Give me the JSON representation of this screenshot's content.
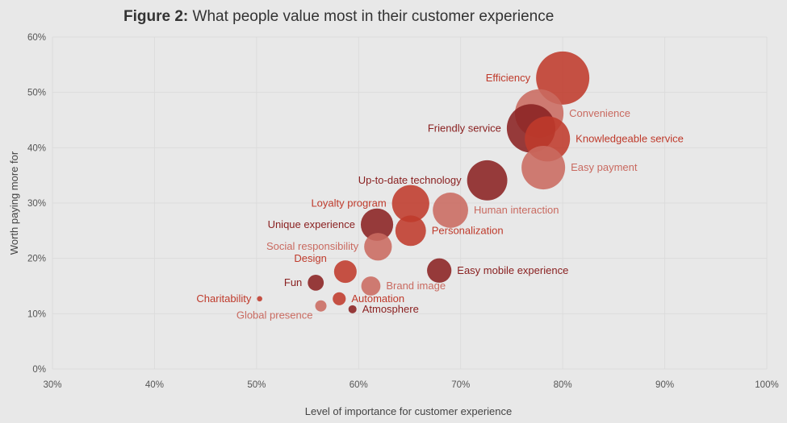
{
  "chart_data": {
    "type": "scatter",
    "subtype": "bubble",
    "title_prefix": "Figure 2:",
    "title": "What people value most in their customer experience",
    "xlabel": "Level of importance for customer experience",
    "ylabel": "Worth paying more for",
    "xlim": [
      30,
      100
    ],
    "ylim": [
      0,
      60
    ],
    "x_ticks": [
      "30%",
      "40%",
      "50%",
      "60%",
      "70%",
      "80%",
      "90%",
      "100%"
    ],
    "y_ticks": [
      "0%",
      "10%",
      "20%",
      "30%",
      "40%",
      "50%",
      "60%"
    ],
    "grid": true,
    "colors": {
      "red": "#bf3a2b",
      "dark": "#8a2121",
      "light": "#c96a60"
    },
    "points": [
      {
        "label": "Efficiency",
        "x": 80.0,
        "y": 52.6,
        "size": 100,
        "color": "red",
        "label_side": "left"
      },
      {
        "label": "Convenience",
        "x": 77.7,
        "y": 46.2,
        "size": 83,
        "color": "light",
        "label_side": "right"
      },
      {
        "label": "Friendly service",
        "x": 76.9,
        "y": 43.5,
        "size": 83,
        "color": "dark",
        "label_side": "left"
      },
      {
        "label": "Knowledgeable service",
        "x": 78.5,
        "y": 41.6,
        "size": 72,
        "color": "red",
        "label_side": "right"
      },
      {
        "label": "Easy payment",
        "x": 78.1,
        "y": 36.4,
        "size": 67,
        "color": "light",
        "label_side": "right"
      },
      {
        "label": "Up-to-date technology",
        "x": 72.6,
        "y": 34.1,
        "size": 57,
        "color": "dark",
        "label_side": "left"
      },
      {
        "label": "Loyalty program",
        "x": 65.1,
        "y": 29.9,
        "size": 49,
        "color": "red",
        "label_side": "left"
      },
      {
        "label": "Human interaction",
        "x": 69.0,
        "y": 28.7,
        "size": 44,
        "color": "light",
        "label_side": "right"
      },
      {
        "label": "Unique experience",
        "x": 61.8,
        "y": 26.1,
        "size": 37,
        "color": "dark",
        "label_side": "left"
      },
      {
        "label": "Personalization",
        "x": 65.1,
        "y": 25.0,
        "size": 33,
        "color": "red",
        "label_side": "right"
      },
      {
        "label": "Social responsibility",
        "x": 61.9,
        "y": 22.1,
        "size": 27,
        "color": "light",
        "label_side": "left"
      },
      {
        "label": "Easy mobile experience",
        "x": 67.9,
        "y": 17.8,
        "size": 21,
        "color": "dark",
        "label_side": "right"
      },
      {
        "label": "Design",
        "x": 58.7,
        "y": 17.6,
        "size": 18,
        "color": "red",
        "label_side": "left"
      },
      {
        "label": "Fun",
        "x": 55.8,
        "y": 15.6,
        "size": 9,
        "color": "dark",
        "label_side": "left"
      },
      {
        "label": "Brand image",
        "x": 61.2,
        "y": 15.0,
        "size": 13,
        "color": "light",
        "label_side": "right"
      },
      {
        "label": "Charitability",
        "x": 50.3,
        "y": 12.7,
        "size": 1,
        "color": "red",
        "label_side": "left"
      },
      {
        "label": "Automation",
        "x": 58.1,
        "y": 12.7,
        "size": 6,
        "color": "red",
        "label_side": "right"
      },
      {
        "label": "Global presence",
        "x": 56.3,
        "y": 11.4,
        "size": 4.5,
        "color": "light",
        "label_side": "left"
      },
      {
        "label": "Atmosphere",
        "x": 59.4,
        "y": 10.8,
        "size": 2.3,
        "color": "dark",
        "label_side": "right"
      }
    ]
  }
}
